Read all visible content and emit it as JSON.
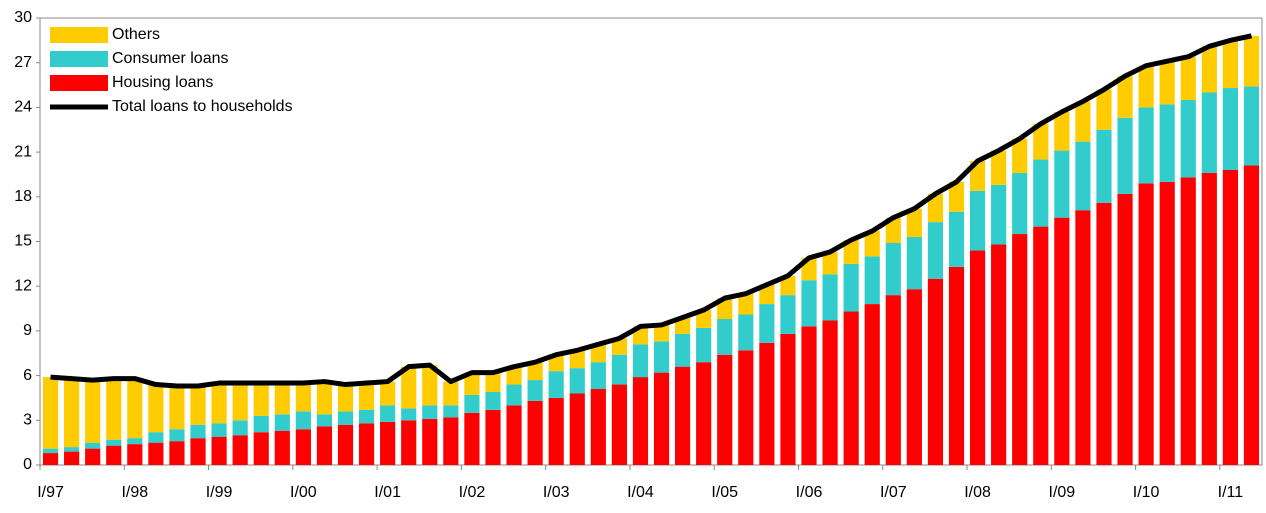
{
  "chart_data": {
    "type": "bar",
    "stacked": true,
    "categories": [
      "I/97",
      null,
      null,
      null,
      "I/98",
      null,
      null,
      null,
      "I/99",
      null,
      null,
      null,
      "I/00",
      null,
      null,
      null,
      "I/01",
      null,
      null,
      null,
      "I/02",
      null,
      null,
      null,
      "I/03",
      null,
      null,
      null,
      "I/04",
      null,
      null,
      null,
      "I/05",
      null,
      null,
      null,
      "I/06",
      null,
      null,
      null,
      "I/07",
      null,
      null,
      null,
      "I/08",
      null,
      null,
      null,
      "I/09",
      null,
      null,
      null,
      "I/10",
      null,
      null,
      null,
      "I/11",
      null
    ],
    "series": [
      {
        "name": "Housing loans",
        "type": "bar",
        "color": "#ff0000",
        "values": [
          0.8,
          0.9,
          1.1,
          1.3,
          1.4,
          1.5,
          1.6,
          1.8,
          1.9,
          2.0,
          2.2,
          2.3,
          2.4,
          2.6,
          2.7,
          2.8,
          2.9,
          3.0,
          3.1,
          3.2,
          3.5,
          3.7,
          4.0,
          4.3,
          4.5,
          4.8,
          5.1,
          5.4,
          5.9,
          6.2,
          6.6,
          6.9,
          7.4,
          7.7,
          8.2,
          8.8,
          9.3,
          9.7,
          10.3,
          10.8,
          11.4,
          11.8,
          12.5,
          13.3,
          14.4,
          14.8,
          15.5,
          16.0,
          16.6,
          17.1,
          17.6,
          18.2,
          18.9,
          19.0,
          19.3,
          19.6,
          19.8,
          20.1
        ]
      },
      {
        "name": "Consumer loans",
        "type": "bar",
        "color": "#33cccc",
        "values": [
          0.3,
          0.3,
          0.4,
          0.4,
          0.4,
          0.7,
          0.8,
          0.9,
          0.9,
          1.0,
          1.1,
          1.1,
          1.2,
          0.8,
          0.9,
          0.9,
          1.1,
          0.8,
          0.9,
          0.8,
          1.2,
          1.2,
          1.4,
          1.4,
          1.8,
          1.7,
          1.8,
          2.0,
          2.2,
          2.1,
          2.2,
          2.3,
          2.4,
          2.4,
          2.6,
          2.6,
          3.1,
          3.1,
          3.2,
          3.2,
          3.5,
          3.5,
          3.8,
          3.7,
          4.0,
          4.0,
          4.1,
          4.5,
          4.5,
          4.6,
          4.9,
          5.1,
          5.1,
          5.2,
          5.2,
          5.4,
          5.5,
          5.3
        ]
      },
      {
        "name": "Others",
        "type": "bar",
        "color": "#ffcc00",
        "values": [
          4.8,
          4.6,
          4.2,
          4.1,
          4.0,
          3.2,
          2.9,
          2.6,
          2.7,
          2.5,
          2.2,
          2.1,
          1.9,
          2.2,
          1.8,
          1.8,
          1.6,
          2.8,
          2.7,
          1.6,
          1.5,
          1.3,
          1.2,
          1.2,
          1.1,
          1.2,
          1.2,
          1.1,
          1.2,
          1.1,
          1.1,
          1.2,
          1.4,
          1.4,
          1.3,
          1.3,
          1.5,
          1.5,
          1.6,
          1.7,
          1.7,
          1.9,
          1.9,
          2.0,
          2.0,
          2.3,
          2.3,
          2.4,
          2.6,
          2.7,
          2.7,
          2.8,
          2.8,
          2.9,
          2.9,
          3.1,
          3.2,
          3.4
        ]
      },
      {
        "name": "Total loans to households",
        "type": "line",
        "color": "#000000",
        "values": [
          5.9,
          5.8,
          5.7,
          5.8,
          5.8,
          5.4,
          5.3,
          5.3,
          5.5,
          5.5,
          5.5,
          5.5,
          5.5,
          5.6,
          5.4,
          5.5,
          5.6,
          6.6,
          6.7,
          5.6,
          6.2,
          6.2,
          6.6,
          6.9,
          7.4,
          7.7,
          8.1,
          8.5,
          9.3,
          9.4,
          9.9,
          10.4,
          11.2,
          11.5,
          12.1,
          12.7,
          13.9,
          14.3,
          15.1,
          15.7,
          16.6,
          17.2,
          18.2,
          19.0,
          20.4,
          21.1,
          21.9,
          22.9,
          23.7,
          24.4,
          25.2,
          26.1,
          26.8,
          27.1,
          27.4,
          28.1,
          28.5,
          28.8
        ]
      }
    ],
    "legend_order": [
      2,
      1,
      0,
      3
    ],
    "legend": "upper left",
    "ylim": [
      0,
      30
    ],
    "yticks": [
      0,
      3,
      6,
      9,
      12,
      15,
      18,
      21,
      24,
      27,
      30
    ],
    "grid": false
  }
}
